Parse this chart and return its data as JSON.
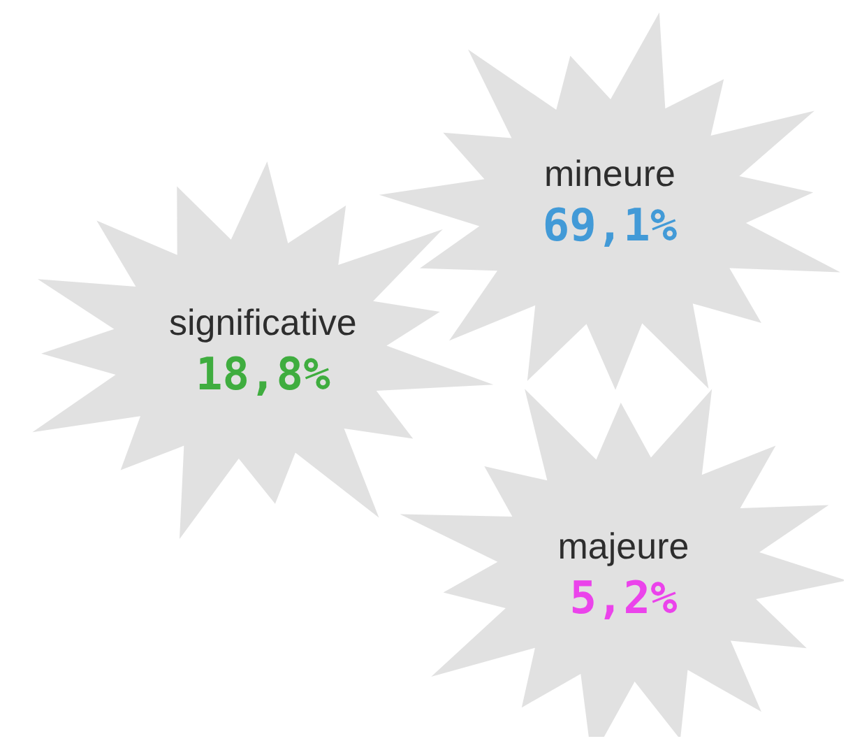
{
  "chart_data": {
    "type": "other",
    "categories": [
      "mineure",
      "significative",
      "majeure"
    ],
    "values": [
      69.1,
      18.8,
      5.2
    ],
    "value_labels": [
      "69,1%",
      "18,8%",
      "5,2%"
    ],
    "colors": [
      "#d9d9d9",
      "#d9d9d9",
      "#d9d9d9"
    ]
  }
}
